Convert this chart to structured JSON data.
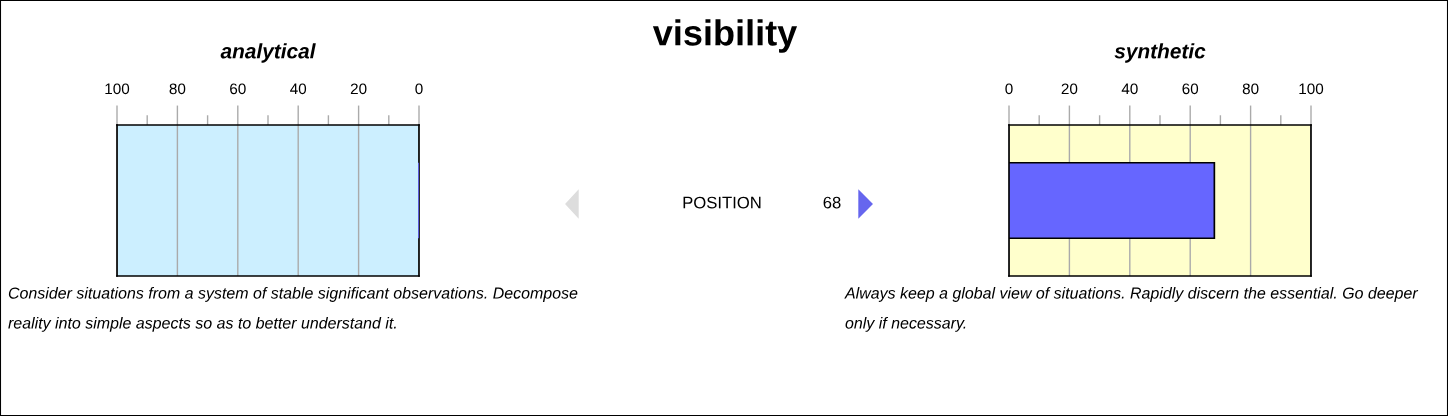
{
  "chart_data": [
    {
      "type": "bar",
      "orientation": "horizontal",
      "title": "analytical",
      "categories": [
        null
      ],
      "values": [
        0
      ],
      "color": "#6666ff",
      "xlim": [
        100,
        0
      ],
      "xticks": [
        0,
        {
          "value": 10,
          "label": null
        },
        20,
        {
          "value": 30,
          "label": null
        },
        40,
        {
          "value": 50,
          "label": null
        },
        60,
        {
          "value": 70,
          "label": null
        },
        80,
        {
          "value": 90,
          "label": null
        },
        100
      ],
      "grid": "x",
      "annotations": [
        "Consider situations from a system of stable significant observations. Decompose reality into simple aspects so as to better understand it."
      ]
    },
    {
      "type": "other",
      "title": "visibility",
      "annotations": [
        "POSITION",
        "68"
      ]
    },
    {
      "type": "bar",
      "orientation": "horizontal",
      "title": "synthetic",
      "categories": [
        null
      ],
      "values": [
        68
      ],
      "color": "#6666ff",
      "xlim": [
        0,
        100
      ],
      "xticks": [
        0,
        {
          "value": 10,
          "label": null
        },
        20,
        {
          "value": 30,
          "label": null
        },
        40,
        {
          "value": 50,
          "label": null
        },
        60,
        {
          "value": 70,
          "label": null
        },
        80,
        {
          "value": 90,
          "label": null
        },
        100
      ],
      "grid": "x",
      "annotations": [
        "Always keep a global view of situations. Rapidly discern the essential. Go deeper only if necessary."
      ]
    }
  ]
}
